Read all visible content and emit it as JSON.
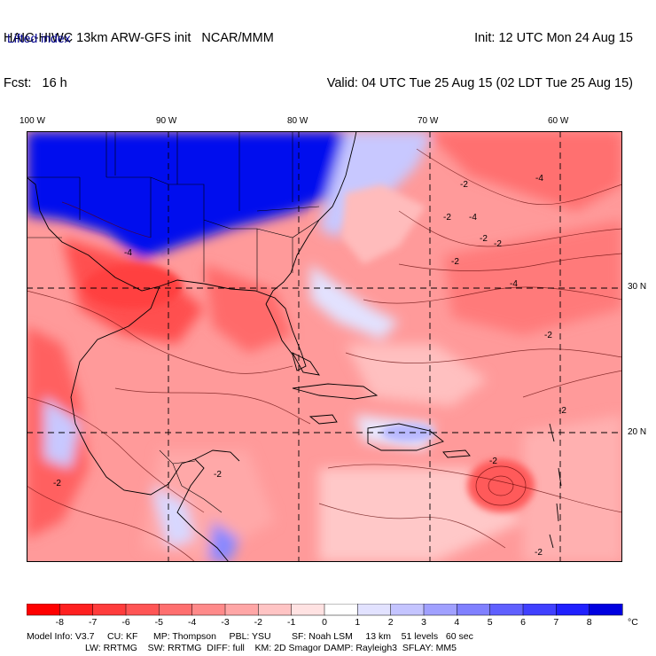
{
  "header": {
    "line1_left": "HAIC-HIWC 13km ARW-GFS init   NCAR/MMM",
    "line2_left": "Fcst:   16 h",
    "line1_right": "Init: 12 UTC Mon 24 Aug 15",
    "line2_right": "Valid: 04 UTC Tue 25 Aug 15 (02 LDT Tue 25 Aug 15)",
    "field_name": "Lifted index"
  },
  "map": {
    "lon_labels": [
      "100 W",
      "90 W",
      "80 W",
      "70 W",
      "60 W"
    ],
    "lat_labels": [
      "30 N",
      "20 N"
    ],
    "contour_labels": [
      "-2",
      "-4",
      "-2",
      "-2",
      "-4",
      "-2",
      "-4",
      "-4",
      "-2",
      "-2",
      "-2",
      "-2",
      "-2",
      "-2",
      "-2"
    ]
  },
  "colorbar": {
    "labels": [
      "-8",
      "-7",
      "-6",
      "-5",
      "-4",
      "-3",
      "-2",
      "-1",
      "0",
      "1",
      "2",
      "3",
      "4",
      "5",
      "6",
      "7",
      "8"
    ],
    "unit": "°C",
    "colors": [
      "#ff0000",
      "#ff2020",
      "#ff3c3c",
      "#ff5555",
      "#ff6f6f",
      "#ff8a8a",
      "#ffa6a6",
      "#ffc4c4",
      "#ffe2e2",
      "#ffffff",
      "#e2e2ff",
      "#c4c4ff",
      "#a0a0ff",
      "#8080ff",
      "#6060ff",
      "#4040ff",
      "#2020ff",
      "#0000e0"
    ]
  },
  "footer": {
    "line1": "Model Info: V3.7     CU: KF      MP: Thompson     PBL: YSU        SF: Noah LSM     13 km    51 levels   60 sec",
    "line2": "LW: RRTMG    SW: RRTMG  DIFF: full    KM: 2D Smagor DAMP: Rayleigh3  SFLAY: MM5"
  }
}
